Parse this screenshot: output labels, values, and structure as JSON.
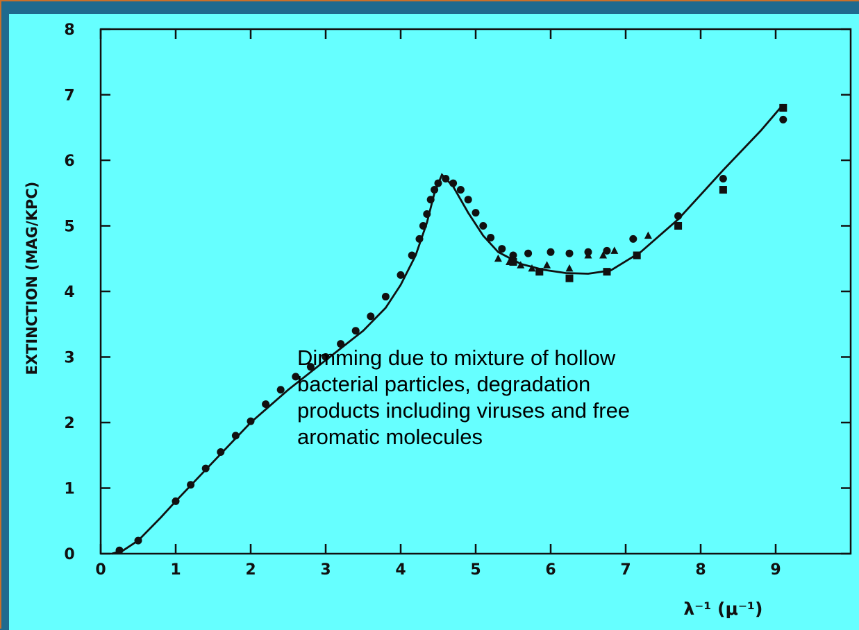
{
  "colors": {
    "background": "#66ffff",
    "frame": "#1f6a8e",
    "ink": "#111111"
  },
  "annotation": {
    "lines": [
      "Dimming due to mixture of hollow",
      "bacterial particles, degradation",
      "products including viruses and free",
      "aromatic molecules"
    ]
  },
  "chart_data": {
    "type": "scatter",
    "title": "",
    "ylabel": "EXTINCTION (MAG/KPC)",
    "xlabel": "λ⁻¹ (μ⁻¹)",
    "xlim": [
      0,
      10
    ],
    "ylim": [
      0,
      8
    ],
    "x_ticks": [
      "0",
      "1",
      "2",
      "3",
      "4",
      "5",
      "6",
      "7",
      "8",
      "9"
    ],
    "y_ticks": [
      "0",
      "1",
      "2",
      "3",
      "4",
      "5",
      "6",
      "7",
      "8"
    ],
    "grid": false,
    "legend": "none",
    "series": [
      {
        "marker": "curve",
        "x": [
          0.15,
          0.3,
          0.5,
          0.8,
          1.0,
          1.5,
          2.0,
          2.5,
          3.0,
          3.5,
          3.8,
          4.0,
          4.2,
          4.35,
          4.45,
          4.55,
          4.7,
          4.9,
          5.1,
          5.3,
          5.6,
          5.9,
          6.2,
          6.5,
          6.8,
          7.2,
          7.7,
          8.3,
          8.8,
          9.1
        ],
        "y": [
          0.0,
          0.05,
          0.2,
          0.55,
          0.8,
          1.4,
          2.0,
          2.5,
          2.95,
          3.4,
          3.75,
          4.1,
          4.55,
          5.05,
          5.5,
          5.78,
          5.6,
          5.2,
          4.85,
          4.6,
          4.42,
          4.33,
          4.28,
          4.27,
          4.32,
          4.6,
          5.1,
          5.85,
          6.45,
          6.85
        ]
      },
      {
        "marker": "circle",
        "x": [
          0.25,
          0.5,
          1.0,
          1.2,
          1.4,
          1.6,
          1.8,
          2.0,
          2.2,
          2.4,
          2.6,
          2.8,
          3.0,
          3.2,
          3.4,
          3.6,
          3.8,
          4.0,
          4.15,
          4.25,
          4.3,
          4.35,
          4.4,
          4.45,
          4.5,
          4.6,
          4.7,
          4.8,
          4.9,
          5.0,
          5.1,
          5.2,
          5.35,
          5.5,
          5.7,
          6.0,
          6.25,
          6.5,
          6.75,
          7.1,
          7.7,
          8.3,
          9.1
        ],
        "y": [
          0.05,
          0.2,
          0.8,
          1.05,
          1.3,
          1.55,
          1.8,
          2.02,
          2.28,
          2.5,
          2.7,
          2.85,
          3.0,
          3.2,
          3.4,
          3.62,
          3.92,
          4.25,
          4.55,
          4.8,
          5.0,
          5.18,
          5.4,
          5.55,
          5.65,
          5.72,
          5.65,
          5.55,
          5.4,
          5.2,
          5.0,
          4.82,
          4.65,
          4.55,
          4.58,
          4.6,
          4.58,
          4.6,
          4.62,
          4.8,
          5.15,
          5.72,
          6.62
        ]
      },
      {
        "marker": "square",
        "x": [
          5.5,
          5.85,
          6.25,
          6.75,
          7.15,
          7.7,
          8.3,
          9.1
        ],
        "y": [
          4.45,
          4.3,
          4.2,
          4.3,
          4.55,
          5.0,
          5.55,
          6.8
        ]
      },
      {
        "marker": "triangle",
        "x": [
          5.3,
          5.45,
          5.6,
          5.75,
          5.95,
          6.25,
          6.5,
          6.7,
          6.85,
          7.3
        ],
        "y": [
          4.5,
          4.45,
          4.4,
          4.35,
          4.4,
          4.35,
          4.55,
          4.55,
          4.62,
          4.85
        ]
      }
    ]
  }
}
